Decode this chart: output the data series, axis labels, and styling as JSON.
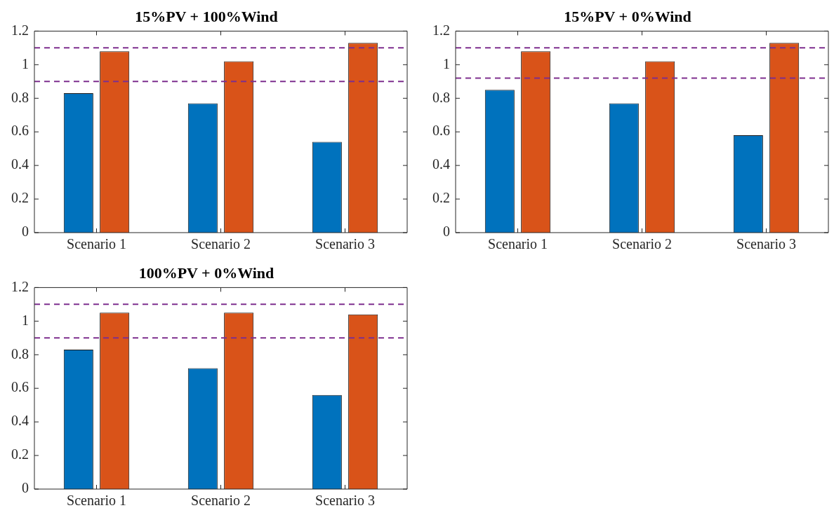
{
  "chart_data": [
    {
      "type": "bar",
      "title": "15%PV + 100%Wind",
      "categories": [
        "Scenario 1",
        "Scenario 2",
        "Scenario 3"
      ],
      "series": [
        {
          "color": "#0072bd",
          "values": [
            0.83,
            0.77,
            0.54
          ]
        },
        {
          "color": "#d95319",
          "values": [
            1.08,
            1.02,
            1.13
          ]
        }
      ],
      "ylim": [
        0,
        1.2
      ],
      "yticks": [
        0,
        0.2,
        0.4,
        0.6,
        0.8,
        1,
        1.2
      ],
      "ref_lines": [
        {
          "axis": "y",
          "value": 1.1,
          "color": "#7e2f8e",
          "line_style": "dashed"
        },
        {
          "axis": "y",
          "value": 0.9,
          "color": "#7e2f8e",
          "line_style": "dashed"
        }
      ]
    },
    {
      "type": "bar",
      "title": "15%PV + 0%Wind",
      "categories": [
        "Scenario 1",
        "Scenario 2",
        "Scenario 3"
      ],
      "series": [
        {
          "color": "#0072bd",
          "values": [
            0.85,
            0.77,
            0.58
          ]
        },
        {
          "color": "#d95319",
          "values": [
            1.08,
            1.02,
            1.13
          ]
        }
      ],
      "ylim": [
        0,
        1.2
      ],
      "yticks": [
        0,
        0.2,
        0.4,
        0.6,
        0.8,
        1,
        1.2
      ],
      "ref_lines": [
        {
          "axis": "y",
          "value": 1.1,
          "color": "#7e2f8e",
          "line_style": "dashed"
        },
        {
          "axis": "y",
          "value": 0.92,
          "color": "#7e2f8e",
          "line_style": "dashed"
        }
      ]
    },
    {
      "type": "bar",
      "title": "100%PV + 0%Wind",
      "categories": [
        "Scenario 1",
        "Scenario 2",
        "Scenario 3"
      ],
      "series": [
        {
          "color": "#0072bd",
          "values": [
            0.83,
            0.72,
            0.56
          ]
        },
        {
          "color": "#d95319",
          "values": [
            1.05,
            1.05,
            1.04
          ]
        }
      ],
      "ylim": [
        0,
        1.2
      ],
      "yticks": [
        0,
        0.2,
        0.4,
        0.6,
        0.8,
        1,
        1.2
      ],
      "ref_lines": [
        {
          "axis": "y",
          "value": 1.1,
          "color": "#7e2f8e",
          "line_style": "dashed"
        },
        {
          "axis": "y",
          "value": 0.9,
          "color": "#7e2f8e",
          "line_style": "dashed"
        }
      ]
    }
  ]
}
